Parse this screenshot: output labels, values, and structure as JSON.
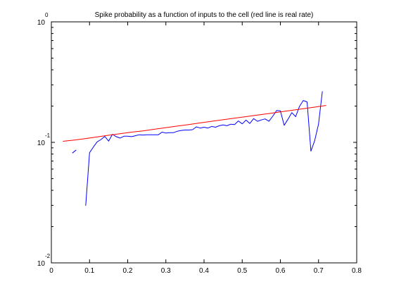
{
  "chart_data": {
    "type": "line",
    "title": "Spike probability as a function of inputs to the cell (red line is real rate)",
    "xlabel": "",
    "ylabel": "",
    "xlim": [
      0,
      0.8
    ],
    "ylim": [
      0.01,
      1
    ],
    "yscale": "log",
    "grid": false,
    "x_ticks": [
      "0",
      "0.1",
      "0.2",
      "0.3",
      "0.4",
      "0.5",
      "0.6",
      "0.7",
      "0.8"
    ],
    "x_tick_values": [
      0,
      0.1,
      0.2,
      0.3,
      0.4,
      0.5,
      0.6,
      0.7,
      0.8
    ],
    "y_ticks": [
      {
        "value": 1,
        "base": "10",
        "exp": "0"
      },
      {
        "value": 0.1,
        "base": "10",
        "exp": "-1"
      },
      {
        "value": 0.01,
        "base": "10",
        "exp": "-2"
      }
    ],
    "series": [
      {
        "color": "#0000ff",
        "segments": [
          [
            [
              0.055,
              0.0815
            ],
            [
              0.065,
              0.0865
            ]
          ],
          [
            [
              0.09,
              0.0298
            ],
            [
              0.1,
              0.082
            ],
            [
              0.11,
              0.0915
            ],
            [
              0.12,
              0.101
            ],
            [
              0.13,
              0.1055
            ],
            [
              0.14,
              0.112
            ],
            [
              0.15,
              0.1025
            ],
            [
              0.16,
              0.1168
            ],
            [
              0.17,
              0.1115
            ],
            [
              0.18,
              0.1085
            ],
            [
              0.19,
              0.1125
            ],
            [
              0.2,
              0.1125
            ],
            [
              0.21,
              0.1115
            ],
            [
              0.22,
              0.1135
            ],
            [
              0.23,
              0.1157
            ],
            [
              0.24,
              0.115
            ],
            [
              0.25,
              0.1155
            ],
            [
              0.26,
              0.1155
            ],
            [
              0.27,
              0.1155
            ],
            [
              0.28,
              0.1155
            ],
            [
              0.29,
              0.1215
            ],
            [
              0.3,
              0.1195
            ],
            [
              0.31,
              0.1205
            ],
            [
              0.32,
              0.1205
            ],
            [
              0.33,
              0.1235
            ],
            [
              0.34,
              0.1255
            ],
            [
              0.35,
              0.1265
            ],
            [
              0.36,
              0.1265
            ],
            [
              0.37,
              0.1275
            ],
            [
              0.38,
              0.1345
            ],
            [
              0.39,
              0.1315
            ],
            [
              0.4,
              0.1335
            ],
            [
              0.41,
              0.1315
            ],
            [
              0.42,
              0.1355
            ],
            [
              0.43,
              0.1335
            ],
            [
              0.44,
              0.1375
            ],
            [
              0.45,
              0.1395
            ],
            [
              0.46,
              0.1375
            ],
            [
              0.47,
              0.1415
            ],
            [
              0.48,
              0.1405
            ],
            [
              0.49,
              0.1505
            ],
            [
              0.5,
              0.1425
            ],
            [
              0.51,
              0.153
            ],
            [
              0.52,
              0.1435
            ],
            [
              0.53,
              0.1575
            ],
            [
              0.54,
              0.1495
            ],
            [
              0.55,
              0.1535
            ],
            [
              0.56,
              0.1565
            ],
            [
              0.57,
              0.1495
            ],
            [
              0.58,
              0.1645
            ],
            [
              0.59,
              0.1835
            ],
            [
              0.6,
              0.1825
            ],
            [
              0.61,
              0.1385
            ],
            [
              0.62,
              0.1555
            ],
            [
              0.63,
              0.1765
            ],
            [
              0.64,
              0.1635
            ],
            [
              0.65,
              0.1985
            ],
            [
              0.66,
              0.2225
            ],
            [
              0.67,
              0.2165
            ],
            [
              0.68,
              0.0845
            ],
            [
              0.69,
              0.1035
            ],
            [
              0.7,
              0.1415
            ],
            [
              0.71,
              0.2655
            ]
          ]
        ]
      },
      {
        "color": "#ff0000",
        "segments": [
          [
            [
              0.03,
              0.102
            ],
            [
              0.06,
              0.1045
            ],
            [
              0.09,
              0.1075
            ],
            [
              0.12,
              0.111
            ],
            [
              0.15,
              0.1145
            ],
            [
              0.18,
              0.118
            ],
            [
              0.21,
              0.1215
            ],
            [
              0.24,
              0.1245
            ],
            [
              0.27,
              0.1285
            ],
            [
              0.3,
              0.1325
            ],
            [
              0.33,
              0.1365
            ],
            [
              0.36,
              0.1405
            ],
            [
              0.39,
              0.145
            ],
            [
              0.42,
              0.1495
            ],
            [
              0.45,
              0.154
            ],
            [
              0.48,
              0.159
            ],
            [
              0.51,
              0.1635
            ],
            [
              0.54,
              0.1685
            ],
            [
              0.57,
              0.1735
            ],
            [
              0.6,
              0.179
            ],
            [
              0.63,
              0.1845
            ],
            [
              0.66,
              0.19
            ],
            [
              0.69,
              0.196
            ],
            [
              0.72,
              0.2025
            ]
          ]
        ]
      }
    ]
  }
}
